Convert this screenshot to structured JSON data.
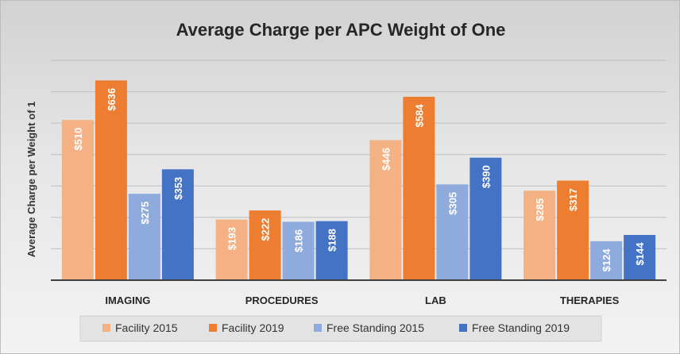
{
  "chart_data": {
    "type": "bar",
    "title": "Average Charge per APC Weight of One",
    "xlabel": "",
    "ylabel": "Average Charge per Weight of 1",
    "categories": [
      "IMAGING",
      "PROCEDURES",
      "LAB",
      "THERAPIES"
    ],
    "series": [
      {
        "name": "Facility 2015",
        "values": [
          510,
          193,
          446,
          285
        ],
        "labels": [
          "$510",
          "$193",
          "$446",
          "$285"
        ],
        "color": "#f4b183"
      },
      {
        "name": "Facility 2019",
        "values": [
          636,
          222,
          584,
          317
        ],
        "labels": [
          "$636",
          "$222",
          "$584",
          "$317"
        ],
        "color": "#ed7d31"
      },
      {
        "name": "Free Standing 2015",
        "values": [
          275,
          186,
          305,
          124
        ],
        "labels": [
          "$275",
          "$186",
          "$305",
          "$124"
        ],
        "color": "#8faadc"
      },
      {
        "name": "Free Standing 2019",
        "values": [
          353,
          188,
          390,
          144
        ],
        "labels": [
          "$353",
          "$188",
          "$390",
          "$144"
        ],
        "color": "#4472c4"
      }
    ],
    "ylim": [
      0,
      700
    ],
    "y_tick_step": 100,
    "y_tick_labels_shown": false,
    "grid": true,
    "legend": "bottom"
  }
}
